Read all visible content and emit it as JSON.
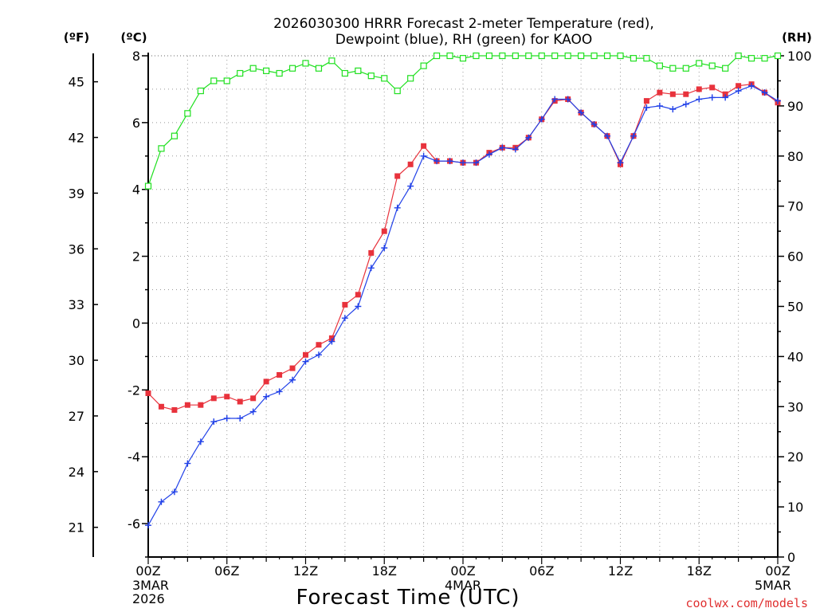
{
  "chart_data": {
    "type": "line",
    "title": "2026030300 HRRR Forecast 2-meter Temperature (red),",
    "subtitle": "Dewpoint (blue), RH (green) for KAOO",
    "xlabel": "Forecast Time (UTC)",
    "credit": "coolwx.com/models",
    "units": {
      "fahrenheit": "(ºF)",
      "celsius": "(ºC)",
      "rh": "(RH)"
    },
    "xlim_hours": [
      0,
      48
    ],
    "ylim_c": [
      -7,
      8
    ],
    "ylim_rh": [
      0,
      100
    ],
    "f_ticks": [
      "21",
      "24",
      "27",
      "30",
      "33",
      "36",
      "39",
      "42",
      "45"
    ],
    "c_ticks": [
      "-6",
      "-4",
      "-2",
      "0",
      "2",
      "4",
      "6",
      "8"
    ],
    "rh_ticks": [
      "0",
      "10",
      "20",
      "30",
      "40",
      "50",
      "60",
      "70",
      "80",
      "90",
      "100"
    ],
    "x_ticks": [
      {
        "hour": 0,
        "label": "00Z",
        "date": "3MAR",
        "year": "2026"
      },
      {
        "hour": 6,
        "label": "06Z",
        "date": "",
        "year": ""
      },
      {
        "hour": 12,
        "label": "12Z",
        "date": "",
        "year": ""
      },
      {
        "hour": 18,
        "label": "18Z",
        "date": "",
        "year": ""
      },
      {
        "hour": 24,
        "label": "00Z",
        "date": "4MAR",
        "year": ""
      },
      {
        "hour": 30,
        "label": "06Z",
        "date": "",
        "year": ""
      },
      {
        "hour": 36,
        "label": "12Z",
        "date": "",
        "year": ""
      },
      {
        "hour": 42,
        "label": "18Z",
        "date": "",
        "year": ""
      },
      {
        "hour": 48,
        "label": "00Z",
        "date": "5MAR",
        "year": ""
      }
    ],
    "series": [
      {
        "name": "Temperature",
        "unit": "C",
        "color": "#e8323c",
        "values": [
          -2.1,
          -2.5,
          -2.6,
          -2.45,
          -2.45,
          -2.25,
          -2.2,
          -2.35,
          -2.25,
          -1.75,
          -1.55,
          -1.35,
          -0.95,
          -0.65,
          -0.45,
          0.55,
          0.85,
          2.1,
          2.75,
          4.4,
          4.75,
          5.3,
          4.85,
          4.85,
          4.8,
          4.8,
          5.1,
          5.25,
          5.25,
          5.55,
          6.1,
          6.65,
          6.7,
          6.3,
          5.95,
          5.6,
          4.75,
          5.6,
          6.65,
          6.9,
          6.85,
          6.85,
          7.0,
          7.05,
          6.85,
          7.1,
          7.15,
          6.9,
          6.6
        ]
      },
      {
        "name": "Dewpoint",
        "unit": "C",
        "color": "#2040e8",
        "values": [
          -6.05,
          -5.35,
          -5.05,
          -4.2,
          -3.55,
          -2.95,
          -2.85,
          -2.85,
          -2.65,
          -2.2,
          -2.05,
          -1.7,
          -1.15,
          -0.95,
          -0.55,
          0.15,
          0.5,
          1.65,
          2.25,
          3.45,
          4.1,
          5.0,
          4.85,
          4.85,
          4.8,
          4.8,
          5.05,
          5.25,
          5.2,
          5.55,
          6.1,
          6.7,
          6.7,
          6.3,
          5.95,
          5.6,
          4.8,
          5.6,
          6.45,
          6.5,
          6.4,
          6.55,
          6.7,
          6.75,
          6.75,
          6.95,
          7.1,
          6.9,
          6.65
        ]
      },
      {
        "name": "RH",
        "unit": "%",
        "color": "#20e020",
        "values": [
          74,
          81.5,
          84,
          88.5,
          93,
          95,
          95,
          96.5,
          97.5,
          97,
          96.5,
          97.5,
          98.5,
          97.5,
          99,
          96.5,
          97,
          96,
          95.5,
          93,
          95.5,
          98,
          100,
          100,
          99.5,
          100,
          100,
          100,
          100,
          100,
          100,
          100,
          100,
          100,
          100,
          100,
          100,
          99.5,
          99.5,
          98,
          97.5,
          97.5,
          98.5,
          98,
          97.5,
          100,
          99.5,
          99.5,
          100
        ]
      }
    ]
  }
}
